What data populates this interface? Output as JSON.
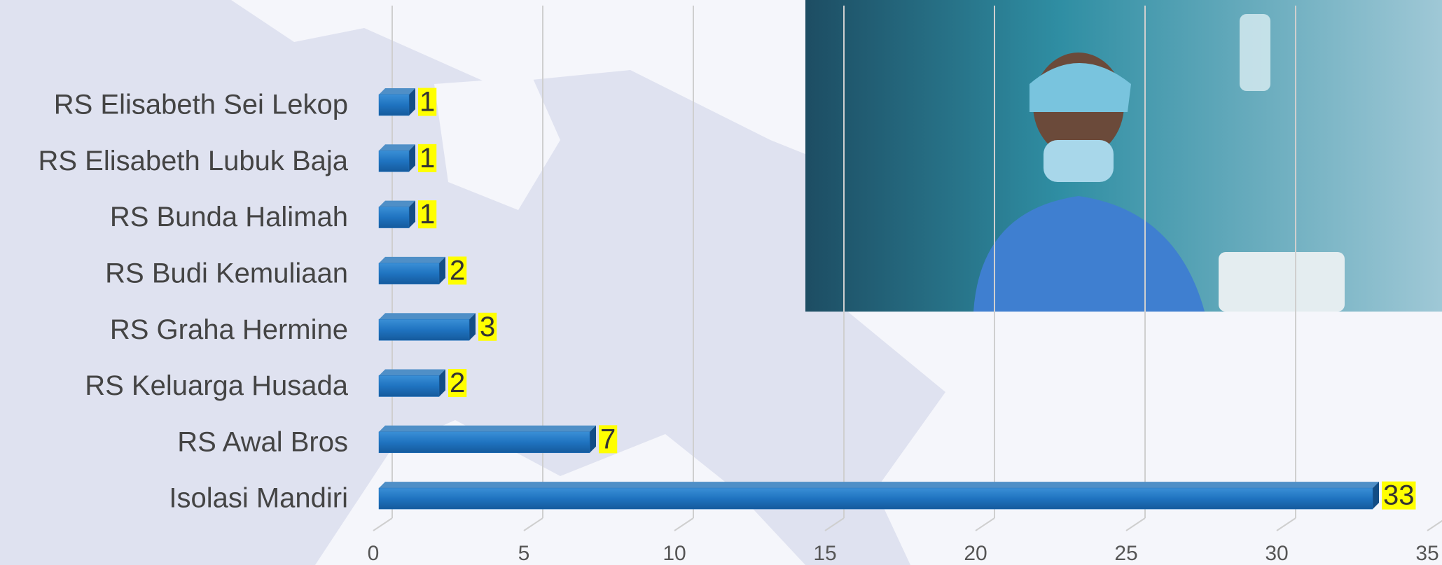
{
  "chart_data": {
    "type": "bar",
    "orientation": "horizontal",
    "categories": [
      "RS Elisabeth Sei Lekop",
      "RS Elisabeth Lubuk Baja",
      "RS Bunda Halimah",
      "RS Budi Kemuliaan",
      "RS Graha Hermine",
      "RS Keluarga Husada",
      "RS Awal Bros",
      "Isolasi Mandiri"
    ],
    "values": [
      1,
      1,
      1,
      2,
      3,
      2,
      7,
      33
    ],
    "color": "#1f73c0",
    "xlim": [
      0,
      35
    ],
    "xticks": [
      0,
      5,
      10,
      15,
      20,
      25,
      30,
      35
    ],
    "grid": true
  }
}
